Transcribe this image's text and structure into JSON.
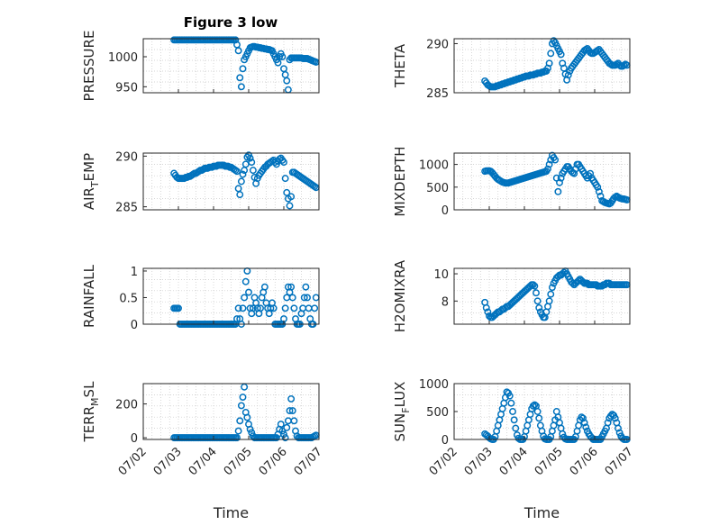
{
  "figure": {
    "title": "Figure 3 low",
    "marker_color": "#0072BD"
  },
  "chart_data": [
    {
      "type": "scatter",
      "title": "Figure 3 low",
      "ylabel": "PRESSURE",
      "xlabel": "",
      "xlim": [
        "07/02",
        "07/07"
      ],
      "ylim": [
        940,
        1030
      ],
      "yticks": [
        950,
        1000
      ],
      "x_start": "07/02 21:00",
      "x_step_hours": 1,
      "values": [
        1028,
        1028,
        1028,
        1028,
        1028,
        1028,
        1028,
        1028,
        1028,
        1028,
        1028,
        1028,
        1028,
        1028,
        1028,
        1028,
        1028,
        1028,
        1028,
        1028,
        1028,
        1028,
        1028,
        1028,
        1028,
        1028,
        1028,
        1028,
        1028,
        1028,
        1028,
        1028,
        1028,
        1028,
        1028,
        1028,
        1028,
        1028,
        1028,
        1028,
        1028,
        1028,
        1028,
        1020,
        1010,
        965,
        950,
        980,
        995,
        1000,
        1005,
        1010,
        1015,
        1016,
        1017,
        1017,
        1016,
        1016,
        1015,
        1015,
        1014,
        1014,
        1013,
        1013,
        1012,
        1012,
        1011,
        1010,
        1005,
        1000,
        995,
        990,
        1000,
        1005,
        1000,
        980,
        970,
        960,
        945,
        995,
        998,
        998,
        998,
        998,
        998,
        998,
        998,
        998,
        997,
        997,
        997,
        997,
        996,
        995,
        994,
        993,
        992,
        991
      ]
    },
    {
      "type": "scatter",
      "ylabel": "THETA",
      "xlabel": "",
      "xlim": [
        "07/02",
        "07/07"
      ],
      "ylim": [
        285,
        290.5
      ],
      "yticks": [
        285,
        290
      ],
      "x_start": "07/02 21:00",
      "x_step_hours": 1,
      "values": [
        286.2,
        286,
        285.8,
        285.7,
        285.6,
        285.6,
        285.6,
        285.6,
        285.7,
        285.7,
        285.8,
        285.8,
        285.9,
        285.9,
        286,
        286,
        286.1,
        286.1,
        286.2,
        286.2,
        286.3,
        286.3,
        286.4,
        286.4,
        286.5,
        286.5,
        286.6,
        286.6,
        286.7,
        286.7,
        286.7,
        286.8,
        286.8,
        286.8,
        286.9,
        286.9,
        287,
        287,
        287,
        287.1,
        287.1,
        287.2,
        287.2,
        287.5,
        288,
        289,
        290,
        290.3,
        290.1,
        289.8,
        289.5,
        289.2,
        288.9,
        288,
        287.5,
        286.9,
        286.3,
        286.8,
        287.2,
        287.5,
        287.7,
        287.9,
        288.1,
        288.3,
        288.5,
        288.7,
        288.9,
        289.1,
        289.3,
        289.4,
        289.5,
        289.3,
        289.1,
        289,
        289,
        289.1,
        289.2,
        289.3,
        289.4,
        289.2,
        289,
        288.8,
        288.6,
        288.4,
        288.2,
        288,
        287.9,
        287.8,
        287.8,
        287.8,
        287.9,
        288,
        287.8,
        287.7,
        287.7,
        287.8,
        287.9,
        287.8
      ]
    },
    {
      "type": "scatter",
      "ylabel": "AIR_TEMP",
      "xlabel": "",
      "xlim": [
        "07/02",
        "07/07"
      ],
      "ylim": [
        284.7,
        290.3
      ],
      "yticks": [
        285,
        290
      ],
      "x_start": "07/02 21:00",
      "x_step_hours": 1,
      "values": [
        288.3,
        288.1,
        287.9,
        287.8,
        287.8,
        287.8,
        287.8,
        287.8,
        287.9,
        287.9,
        288,
        288,
        288.1,
        288.2,
        288.3,
        288.3,
        288.4,
        288.5,
        288.6,
        288.6,
        288.7,
        288.8,
        288.8,
        288.8,
        288.9,
        288.9,
        288.9,
        289,
        289,
        289,
        289.1,
        289.1,
        289.1,
        289.1,
        289.1,
        289,
        289,
        289,
        288.9,
        288.9,
        288.8,
        288.7,
        288.6,
        288.5,
        286.8,
        286.2,
        287.5,
        288.2,
        288.6,
        289.2,
        289.9,
        290.1,
        289.8,
        289.4,
        288.6,
        287.9,
        287.3,
        287.8,
        288.1,
        288.3,
        288.5,
        288.7,
        288.9,
        289,
        289.2,
        289.3,
        289.4,
        289.5,
        289.6,
        289.4,
        289.2,
        289.5,
        289.7,
        289.8,
        289.6,
        289.4,
        287.8,
        286.4,
        285.8,
        285.1,
        286,
        288.4,
        288.4,
        288.3,
        288.2,
        288.1,
        288,
        287.9,
        287.8,
        287.7,
        287.6,
        287.5,
        287.4,
        287.3,
        287.2,
        287.1,
        287,
        286.9
      ]
    },
    {
      "type": "scatter",
      "ylabel": "MIXDEPTH",
      "xlabel": "",
      "xlim": [
        "07/02",
        "07/07"
      ],
      "ylim": [
        0,
        1250
      ],
      "yticks": [
        0,
        500,
        1000
      ],
      "x_start": "07/02 21:00",
      "x_step_hours": 1,
      "values": [
        850,
        860,
        860,
        860,
        850,
        820,
        780,
        740,
        700,
        670,
        650,
        630,
        610,
        600,
        590,
        590,
        590,
        600,
        610,
        620,
        630,
        640,
        650,
        660,
        670,
        680,
        690,
        700,
        710,
        720,
        730,
        740,
        750,
        760,
        770,
        780,
        790,
        800,
        810,
        820,
        830,
        840,
        850,
        900,
        1000,
        1100,
        1200,
        1150,
        1100,
        700,
        400,
        600,
        700,
        800,
        850,
        900,
        950,
        950,
        900,
        850,
        820,
        800,
        900,
        1000,
        1000,
        950,
        900,
        850,
        800,
        750,
        700,
        750,
        800,
        700,
        650,
        600,
        550,
        500,
        400,
        300,
        200,
        180,
        160,
        150,
        140,
        130,
        150,
        200,
        250,
        280,
        300,
        280,
        260,
        250,
        240,
        240,
        230,
        220
      ]
    },
    {
      "type": "scatter",
      "ylabel": "RAINFALL",
      "xlabel": "",
      "xlim": [
        "07/02",
        "07/07"
      ],
      "ylim": [
        0,
        1.05
      ],
      "yticks": [
        0,
        0.5,
        1
      ],
      "x_start": "07/02 21:00",
      "x_step_hours": 1,
      "values": [
        0.3,
        0.3,
        0.3,
        0.3,
        0,
        0,
        0,
        0,
        0,
        0,
        0,
        0,
        0,
        0,
        0,
        0,
        0,
        0,
        0,
        0,
        0,
        0,
        0,
        0,
        0,
        0,
        0,
        0,
        0,
        0,
        0,
        0,
        0,
        0,
        0,
        0,
        0,
        0,
        0,
        0,
        0,
        0,
        0,
        0.1,
        0.3,
        0.1,
        0,
        0.3,
        0.5,
        0.8,
        1,
        0.6,
        0.3,
        0.2,
        0.3,
        0.5,
        0.4,
        0.3,
        0.2,
        0.3,
        0.5,
        0.6,
        0.7,
        0.4,
        0.3,
        0.2,
        0.3,
        0.4,
        0.3,
        0,
        0,
        0,
        0,
        0,
        0,
        0.1,
        0.3,
        0.5,
        0.7,
        0.6,
        0.7,
        0.5,
        0.3,
        0.1,
        0,
        0,
        0,
        0.2,
        0.3,
        0.5,
        0.7,
        0.5,
        0.3,
        0.1,
        0,
        0,
        0.3,
        0.5
      ]
    },
    {
      "type": "scatter",
      "ylabel": "H2OMIXRA",
      "xlabel": "",
      "xlim": [
        "07/02",
        "07/07"
      ],
      "ylim": [
        6.3,
        10.4
      ],
      "yticks": [
        8,
        10
      ],
      "x_start": "07/02 21:00",
      "x_step_hours": 1,
      "values": [
        7.9,
        7.5,
        7.2,
        6.9,
        6.8,
        6.8,
        6.9,
        7,
        7.1,
        7.2,
        7.2,
        7.3,
        7.4,
        7.4,
        7.5,
        7.6,
        7.6,
        7.7,
        7.8,
        7.9,
        8,
        8.1,
        8.2,
        8.3,
        8.4,
        8.5,
        8.6,
        8.7,
        8.8,
        8.9,
        9,
        9.1,
        9.2,
        9.2,
        9.1,
        8.6,
        8,
        7.5,
        7.2,
        7,
        6.8,
        6.8,
        7.2,
        7.6,
        8,
        8.5,
        9,
        9.3,
        9.5,
        9.7,
        9.8,
        9.9,
        9.9,
        10,
        10.1,
        10.2,
        10,
        9.8,
        9.6,
        9.4,
        9.3,
        9.2,
        9.3,
        9.4,
        9.5,
        9.6,
        9.5,
        9.4,
        9.3,
        9.3,
        9.3,
        9.2,
        9.2,
        9.2,
        9.2,
        9.2,
        9.2,
        9.1,
        9.1,
        9.1,
        9.1,
        9.2,
        9.2,
        9.3,
        9.3,
        9.3,
        9.2,
        9.2,
        9.2,
        9.2,
        9.2,
        9.2,
        9.2,
        9.2,
        9.2,
        9.2,
        9.2,
        9.2
      ]
    },
    {
      "type": "scatter",
      "ylabel": "TERR_MSL",
      "xlabel": "Time",
      "xlim": [
        "07/02",
        "07/07"
      ],
      "ylim": [
        -10,
        320
      ],
      "yticks": [
        0,
        200
      ],
      "xticks": [
        "07/02",
        "07/03",
        "07/04",
        "07/05",
        "07/06",
        "07/07"
      ],
      "x_start": "07/02 21:00",
      "x_step_hours": 1,
      "values": [
        0,
        0,
        0,
        0,
        0,
        0,
        0,
        0,
        0,
        0,
        0,
        0,
        0,
        0,
        0,
        0,
        0,
        0,
        0,
        0,
        0,
        0,
        0,
        0,
        0,
        0,
        0,
        0,
        0,
        0,
        0,
        0,
        0,
        0,
        0,
        0,
        0,
        0,
        0,
        0,
        0,
        0,
        0,
        0,
        40,
        100,
        190,
        240,
        300,
        150,
        120,
        80,
        50,
        30,
        10,
        0,
        0,
        0,
        0,
        0,
        0,
        0,
        0,
        0,
        0,
        0,
        0,
        0,
        0,
        0,
        0,
        20,
        50,
        80,
        40,
        20,
        0,
        60,
        100,
        160,
        230,
        160,
        100,
        40,
        10,
        0,
        0,
        0,
        0,
        0,
        0,
        0,
        0,
        0,
        0,
        5,
        10,
        15
      ]
    },
    {
      "type": "scatter",
      "ylabel": "SUN_FLUX",
      "xlabel": "Time",
      "xlim": [
        "07/02",
        "07/07"
      ],
      "ylim": [
        0,
        1000
      ],
      "yticks": [
        0,
        500,
        1000
      ],
      "xticks": [
        "07/02",
        "07/03",
        "07/04",
        "07/05",
        "07/06",
        "07/07"
      ],
      "x_start": "07/02 21:00",
      "x_step_hours": 1,
      "values": [
        100,
        80,
        60,
        30,
        10,
        0,
        0,
        50,
        150,
        250,
        350,
        450,
        550,
        650,
        750,
        850,
        830,
        780,
        650,
        500,
        350,
        200,
        80,
        20,
        0,
        0,
        0,
        50,
        150,
        250,
        350,
        450,
        550,
        600,
        620,
        600,
        500,
        380,
        250,
        150,
        60,
        10,
        0,
        0,
        0,
        50,
        150,
        250,
        350,
        500,
        400,
        300,
        200,
        100,
        40,
        10,
        0,
        0,
        0,
        0,
        0,
        0,
        50,
        150,
        250,
        350,
        400,
        380,
        300,
        220,
        150,
        100,
        60,
        30,
        0,
        0,
        0,
        0,
        0,
        0,
        50,
        100,
        150,
        200,
        300,
        380,
        420,
        450,
        430,
        380,
        300,
        200,
        120,
        60,
        20,
        0,
        0,
        0
      ]
    }
  ]
}
